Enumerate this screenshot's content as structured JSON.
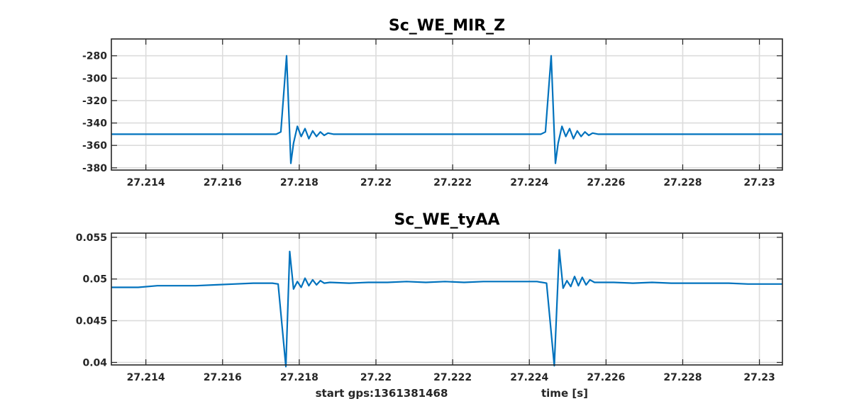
{
  "footer": {
    "start_gps": "start gps:1361381468",
    "xlabel": "time [s]"
  },
  "colors": {
    "series": "#0072bd",
    "grid": "#dcdcdc",
    "axes": "#262626"
  },
  "chart_data": [
    {
      "type": "line",
      "title": "Sc_WE_MIR_Z",
      "xlabel": "",
      "ylabel": "",
      "xlim": [
        27.2131,
        27.2306
      ],
      "ylim": [
        -382,
        -265
      ],
      "grid": true,
      "x_ticks": [
        27.214,
        27.216,
        27.218,
        27.22,
        27.222,
        27.224,
        27.226,
        27.228,
        27.23
      ],
      "x_tick_labels": [
        "27.214",
        "27.216",
        "27.218",
        "27.22",
        "27.222",
        "27.224",
        "27.226",
        "27.228",
        "27.23"
      ],
      "y_ticks": [
        -280,
        -300,
        -320,
        -340,
        -360,
        -380
      ],
      "y_tick_labels": [
        "-280",
        "-300",
        "-320",
        "-340",
        "-360",
        "-380"
      ],
      "series": [
        {
          "x": [
            27.2131,
            27.2174,
            27.21752,
            27.21767,
            27.21778,
            27.21785,
            27.21795,
            27.21805,
            27.21815,
            27.21825,
            27.21835,
            27.21845,
            27.21855,
            27.21865,
            27.21875,
            27.2189,
            27.2243,
            27.22442,
            27.22457,
            27.22468,
            27.22475,
            27.22485,
            27.22495,
            27.22505,
            27.22515,
            27.22525,
            27.22535,
            27.22545,
            27.22555,
            27.22565,
            27.2258,
            27.2306
          ],
          "y": [
            -350,
            -350,
            -348,
            -280,
            -376,
            -358,
            -343,
            -352,
            -345,
            -354,
            -347,
            -352,
            -348,
            -351,
            -349,
            -350,
            -350,
            -348,
            -280,
            -376,
            -358,
            -343,
            -352,
            -345,
            -354,
            -347,
            -352,
            -348,
            -351,
            -349,
            -350,
            -350
          ]
        }
      ]
    },
    {
      "type": "line",
      "title": "Sc_WE_tyAA",
      "xlabel": "time [s]",
      "ylabel": "",
      "xlim": [
        27.2131,
        27.2306
      ],
      "ylim": [
        0.0397,
        0.0555
      ],
      "grid": true,
      "x_ticks": [
        27.214,
        27.216,
        27.218,
        27.22,
        27.222,
        27.224,
        27.226,
        27.228,
        27.23
      ],
      "x_tick_labels": [
        "27.214",
        "27.216",
        "27.218",
        "27.22",
        "27.222",
        "27.224",
        "27.226",
        "27.228",
        "27.23"
      ],
      "y_ticks": [
        0.055,
        0.05,
        0.045,
        0.04
      ],
      "y_tick_labels": [
        "0.055",
        "0.05",
        "0.045",
        "0.04"
      ],
      "series": [
        {
          "x": [
            27.2131,
            27.2138,
            27.2143,
            27.2148,
            27.2153,
            27.2158,
            27.2163,
            27.2168,
            27.2173,
            27.21745,
            27.21765,
            27.21775,
            27.21785,
            27.21795,
            27.21805,
            27.21815,
            27.21825,
            27.21835,
            27.21845,
            27.21855,
            27.21865,
            27.2188,
            27.2193,
            27.2198,
            27.2203,
            27.2208,
            27.2213,
            27.2218,
            27.2223,
            27.2228,
            27.2233,
            27.2238,
            27.2242,
            27.22445,
            27.22465,
            27.22478,
            27.22488,
            27.22498,
            27.22508,
            27.22518,
            27.22528,
            27.22538,
            27.22548,
            27.22558,
            27.2257,
            27.2262,
            27.2267,
            27.2272,
            27.2277,
            27.2282,
            27.2287,
            27.2292,
            27.2297,
            27.2302,
            27.2306
          ],
          "y": [
            0.049,
            0.049,
            0.0492,
            0.0492,
            0.0492,
            0.0493,
            0.0494,
            0.0495,
            0.0495,
            0.0494,
            0.0395,
            0.0533,
            0.0488,
            0.0497,
            0.049,
            0.0501,
            0.0492,
            0.0499,
            0.0493,
            0.0498,
            0.0495,
            0.0496,
            0.0495,
            0.0496,
            0.0496,
            0.0497,
            0.0496,
            0.0497,
            0.0496,
            0.0497,
            0.0497,
            0.0497,
            0.0497,
            0.0495,
            0.0396,
            0.0535,
            0.0489,
            0.0498,
            0.0491,
            0.0503,
            0.0492,
            0.0502,
            0.0493,
            0.0499,
            0.0496,
            0.0496,
            0.0495,
            0.0496,
            0.0495,
            0.0495,
            0.0495,
            0.0495,
            0.0494,
            0.0494,
            0.0494
          ]
        }
      ]
    }
  ]
}
